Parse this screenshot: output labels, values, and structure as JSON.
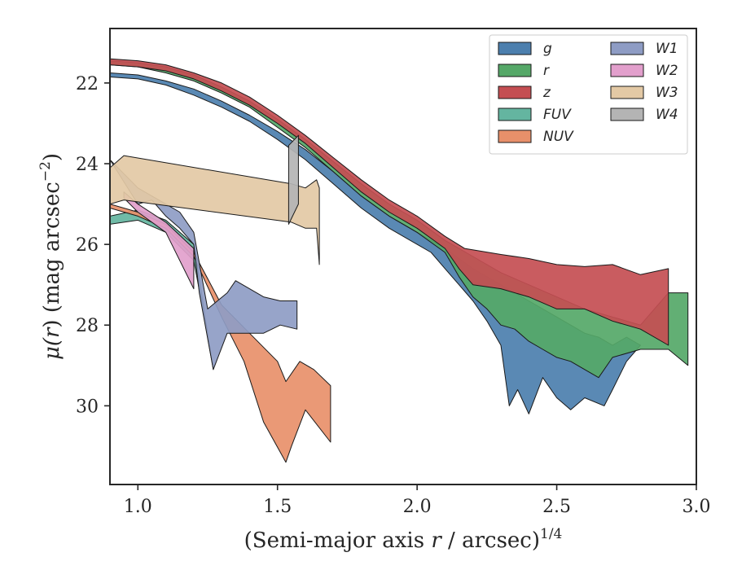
{
  "chart_data": {
    "type": "area",
    "title": "",
    "xlabel": "(Semi-major axis r / arcsec)^{1/4}",
    "xlabel_parts": [
      "(Semi-major axis ",
      "r",
      " / arcsec)",
      "1/4"
    ],
    "ylabel": "μ(r) (mag arcsec^{−2})",
    "ylabel_parts": [
      "μ(",
      "r",
      ") (mag arcsec",
      "−2",
      ")"
    ],
    "xlim": [
      0.9,
      3.0
    ],
    "ylim": [
      31.95,
      20.65
    ],
    "y_inverted": true,
    "xticks": [
      1.0,
      1.5,
      2.0,
      2.5,
      3.0
    ],
    "xtick_labels": [
      "1.0",
      "1.5",
      "2.0",
      "2.5",
      "3.0"
    ],
    "yticks": [
      22,
      24,
      26,
      28,
      30
    ],
    "ytick_labels": [
      "22",
      "24",
      "26",
      "28",
      "30"
    ],
    "grid": false,
    "legend_position": "top-right",
    "legend_columns": 2,
    "series": [
      {
        "name": "g",
        "color": "#4c7fae",
        "upper": [
          [
            0.9,
            21.75
          ],
          [
            1.0,
            21.8
          ],
          [
            1.1,
            21.95
          ],
          [
            1.2,
            22.15
          ],
          [
            1.3,
            22.45
          ],
          [
            1.4,
            22.8
          ],
          [
            1.5,
            23.2
          ],
          [
            1.6,
            23.65
          ],
          [
            1.7,
            24.2
          ],
          [
            1.8,
            24.8
          ],
          [
            1.9,
            25.3
          ],
          [
            2.0,
            25.7
          ],
          [
            2.1,
            26.1
          ],
          [
            2.2,
            26.6
          ],
          [
            2.3,
            27.0
          ],
          [
            2.4,
            27.4
          ],
          [
            2.5,
            27.8
          ],
          [
            2.55,
            28.0
          ],
          [
            2.6,
            28.2
          ],
          [
            2.65,
            28.3
          ],
          [
            2.7,
            28.5
          ],
          [
            2.75,
            28.3
          ],
          [
            2.8,
            28.5
          ]
        ],
        "lower": [
          [
            0.9,
            21.85
          ],
          [
            1.0,
            21.9
          ],
          [
            1.1,
            22.05
          ],
          [
            1.2,
            22.3
          ],
          [
            1.3,
            22.6
          ],
          [
            1.4,
            22.95
          ],
          [
            1.5,
            23.4
          ],
          [
            1.6,
            23.9
          ],
          [
            1.7,
            24.5
          ],
          [
            1.8,
            25.1
          ],
          [
            1.9,
            25.6
          ],
          [
            2.0,
            26.0
          ],
          [
            2.05,
            26.2
          ],
          [
            2.1,
            26.6
          ],
          [
            2.15,
            27.0
          ],
          [
            2.2,
            27.4
          ],
          [
            2.25,
            27.9
          ],
          [
            2.3,
            28.5
          ],
          [
            2.33,
            30.0
          ],
          [
            2.36,
            29.6
          ],
          [
            2.4,
            30.2
          ],
          [
            2.45,
            29.3
          ],
          [
            2.5,
            29.8
          ],
          [
            2.55,
            30.1
          ],
          [
            2.6,
            29.8
          ],
          [
            2.67,
            30.0
          ],
          [
            2.7,
            29.6
          ],
          [
            2.75,
            28.9
          ],
          [
            2.8,
            28.5
          ]
        ]
      },
      {
        "name": "r",
        "color": "#55a868",
        "upper": [
          [
            0.9,
            21.45
          ],
          [
            1.0,
            21.5
          ],
          [
            1.1,
            21.6
          ],
          [
            1.2,
            21.8
          ],
          [
            1.3,
            22.1
          ],
          [
            1.4,
            22.45
          ],
          [
            1.5,
            22.9
          ],
          [
            1.6,
            23.4
          ],
          [
            1.7,
            23.95
          ],
          [
            1.8,
            24.5
          ],
          [
            1.9,
            25.0
          ],
          [
            2.0,
            25.4
          ],
          [
            2.1,
            25.9
          ],
          [
            2.2,
            26.3
          ],
          [
            2.3,
            26.7
          ],
          [
            2.4,
            27.0
          ],
          [
            2.5,
            27.3
          ],
          [
            2.6,
            27.6
          ],
          [
            2.7,
            27.8
          ],
          [
            2.8,
            28.0
          ],
          [
            2.9,
            27.2
          ],
          [
            2.97,
            27.2
          ]
        ],
        "lower": [
          [
            0.9,
            21.55
          ],
          [
            1.0,
            21.6
          ],
          [
            1.1,
            21.75
          ],
          [
            1.2,
            21.95
          ],
          [
            1.3,
            22.25
          ],
          [
            1.4,
            22.6
          ],
          [
            1.5,
            23.1
          ],
          [
            1.6,
            23.6
          ],
          [
            1.7,
            24.2
          ],
          [
            1.8,
            24.8
          ],
          [
            1.9,
            25.3
          ],
          [
            2.0,
            25.7
          ],
          [
            2.1,
            26.2
          ],
          [
            2.15,
            26.8
          ],
          [
            2.2,
            27.3
          ],
          [
            2.25,
            27.6
          ],
          [
            2.3,
            28.0
          ],
          [
            2.35,
            28.1
          ],
          [
            2.4,
            28.4
          ],
          [
            2.45,
            28.6
          ],
          [
            2.5,
            28.8
          ],
          [
            2.55,
            28.9
          ],
          [
            2.6,
            29.1
          ],
          [
            2.65,
            29.3
          ],
          [
            2.7,
            28.8
          ],
          [
            2.8,
            28.6
          ],
          [
            2.9,
            28.6
          ],
          [
            2.97,
            29.0
          ]
        ]
      },
      {
        "name": "z",
        "color": "#c44e52",
        "upper": [
          [
            0.9,
            21.4
          ],
          [
            1.0,
            21.45
          ],
          [
            1.1,
            21.55
          ],
          [
            1.2,
            21.75
          ],
          [
            1.3,
            22.0
          ],
          [
            1.4,
            22.35
          ],
          [
            1.5,
            22.8
          ],
          [
            1.6,
            23.3
          ],
          [
            1.7,
            23.85
          ],
          [
            1.8,
            24.4
          ],
          [
            1.9,
            24.9
          ],
          [
            2.0,
            25.3
          ],
          [
            2.1,
            25.8
          ],
          [
            2.17,
            26.1
          ],
          [
            2.3,
            26.25
          ],
          [
            2.4,
            26.35
          ],
          [
            2.5,
            26.5
          ],
          [
            2.6,
            26.55
          ],
          [
            2.7,
            26.5
          ],
          [
            2.8,
            26.75
          ],
          [
            2.9,
            26.6
          ]
        ],
        "lower": [
          [
            0.9,
            21.55
          ],
          [
            1.0,
            21.6
          ],
          [
            1.1,
            21.7
          ],
          [
            1.2,
            21.9
          ],
          [
            1.3,
            22.2
          ],
          [
            1.4,
            22.55
          ],
          [
            1.5,
            23.0
          ],
          [
            1.6,
            23.5
          ],
          [
            1.7,
            24.1
          ],
          [
            1.8,
            24.7
          ],
          [
            1.9,
            25.2
          ],
          [
            2.0,
            25.6
          ],
          [
            2.1,
            26.1
          ],
          [
            2.15,
            26.6
          ],
          [
            2.2,
            27.0
          ],
          [
            2.3,
            27.1
          ],
          [
            2.4,
            27.3
          ],
          [
            2.5,
            27.6
          ],
          [
            2.6,
            27.6
          ],
          [
            2.7,
            27.9
          ],
          [
            2.8,
            28.1
          ],
          [
            2.9,
            28.5
          ]
        ]
      },
      {
        "name": "FUV",
        "color": "#64b5a0",
        "upper": [
          [
            0.9,
            25.3
          ],
          [
            1.0,
            25.15
          ],
          [
            1.1,
            25.4
          ],
          [
            1.2,
            26.0
          ],
          [
            1.23,
            27.3
          ],
          [
            1.27,
            29.1
          ]
        ],
        "lower": [
          [
            0.9,
            25.5
          ],
          [
            1.0,
            25.4
          ],
          [
            1.1,
            25.7
          ],
          [
            1.2,
            26.4
          ],
          [
            1.23,
            27.5
          ],
          [
            1.27,
            29.1
          ]
        ]
      },
      {
        "name": "NUV",
        "color": "#e8906a",
        "upper": [
          [
            0.9,
            25.0
          ],
          [
            1.0,
            25.2
          ],
          [
            1.1,
            25.5
          ],
          [
            1.2,
            26.2
          ],
          [
            1.3,
            27.5
          ],
          [
            1.4,
            28.2
          ],
          [
            1.5,
            28.9
          ],
          [
            1.53,
            29.4
          ],
          [
            1.58,
            28.9
          ],
          [
            1.63,
            29.1
          ],
          [
            1.69,
            29.5
          ]
        ],
        "lower": [
          [
            0.9,
            25.1
          ],
          [
            1.0,
            25.3
          ],
          [
            1.1,
            25.6
          ],
          [
            1.2,
            26.3
          ],
          [
            1.3,
            27.8
          ],
          [
            1.38,
            28.9
          ],
          [
            1.45,
            30.4
          ],
          [
            1.53,
            31.4
          ],
          [
            1.55,
            31.0
          ],
          [
            1.6,
            30.1
          ],
          [
            1.69,
            30.9
          ]
        ]
      },
      {
        "name": "W1",
        "color": "#8e9cc4",
        "upper": [
          [
            0.9,
            23.9
          ],
          [
            1.0,
            24.6
          ],
          [
            1.05,
            24.8
          ],
          [
            1.1,
            25.0
          ],
          [
            1.15,
            25.2
          ],
          [
            1.2,
            25.7
          ],
          [
            1.25,
            27.6
          ],
          [
            1.32,
            27.2
          ],
          [
            1.35,
            26.9
          ],
          [
            1.45,
            27.3
          ],
          [
            1.51,
            27.4
          ],
          [
            1.57,
            27.4
          ]
        ],
        "lower": [
          [
            0.9,
            23.9
          ],
          [
            1.0,
            25.0
          ],
          [
            1.05,
            24.9
          ],
          [
            1.1,
            25.3
          ],
          [
            1.15,
            25.6
          ],
          [
            1.2,
            26.0
          ],
          [
            1.22,
            27.2
          ],
          [
            1.27,
            29.1
          ],
          [
            1.32,
            28.2
          ],
          [
            1.45,
            28.2
          ],
          [
            1.51,
            28.0
          ],
          [
            1.57,
            28.1
          ]
        ]
      },
      {
        "name": "W2",
        "color": "#e29fcc",
        "upper": [
          [
            0.95,
            24.7
          ],
          [
            1.0,
            25.0
          ],
          [
            1.1,
            25.45
          ],
          [
            1.2,
            26.1
          ]
        ],
        "lower": [
          [
            0.95,
            24.85
          ],
          [
            1.0,
            25.2
          ],
          [
            1.1,
            25.7
          ],
          [
            1.2,
            27.1
          ]
        ]
      },
      {
        "name": "W3",
        "color": "#e3c9a5",
        "upper": [
          [
            0.9,
            24.1
          ],
          [
            0.95,
            23.8
          ],
          [
            1.55,
            24.5
          ],
          [
            1.6,
            24.6
          ],
          [
            1.64,
            24.4
          ],
          [
            1.65,
            24.6
          ]
        ],
        "lower": [
          [
            0.9,
            25.0
          ],
          [
            0.95,
            24.9
          ],
          [
            1.55,
            25.45
          ],
          [
            1.6,
            25.6
          ],
          [
            1.64,
            25.6
          ],
          [
            1.65,
            26.5
          ]
        ]
      },
      {
        "name": "W4",
        "color": "#b4b4b4",
        "upper": [
          [
            1.54,
            23.55
          ],
          [
            1.575,
            23.3
          ]
        ],
        "lower": [
          [
            1.54,
            25.5
          ],
          [
            1.575,
            25.0
          ]
        ]
      }
    ]
  }
}
